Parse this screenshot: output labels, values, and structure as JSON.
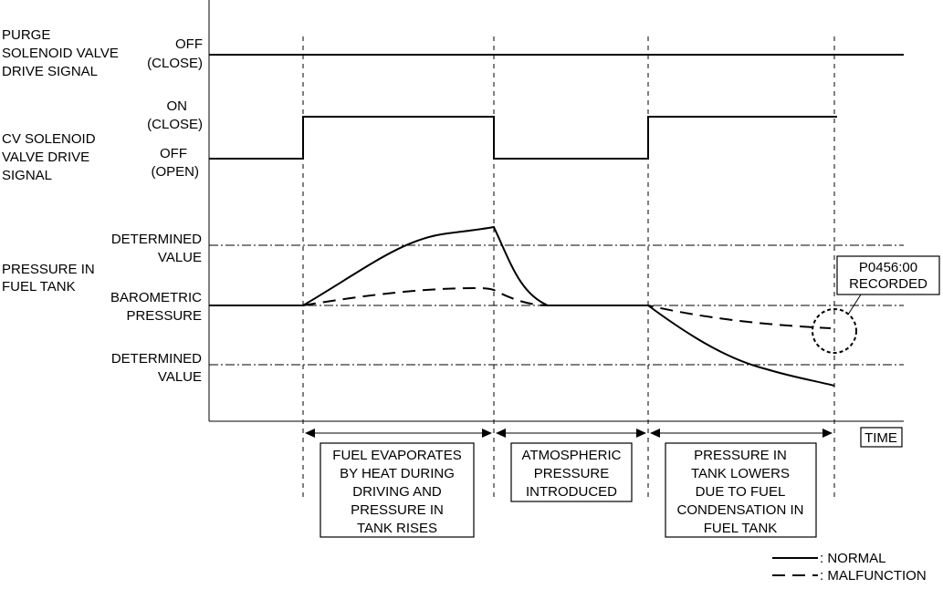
{
  "signals": {
    "purge_label": [
      "PURGE",
      "SOLENOID VALVE",
      "DRIVE SIGNAL"
    ],
    "purge_state": [
      "OFF",
      "(CLOSE)"
    ],
    "cv_label": [
      "CV SOLENOID",
      "VALVE DRIVE",
      "SIGNAL"
    ],
    "cv_on": [
      "ON",
      "(CLOSE)"
    ],
    "cv_off": [
      "OFF",
      "(OPEN)"
    ],
    "pressure_label": [
      "PRESSURE IN",
      "FUEL TANK"
    ],
    "determined_upper": [
      "DETERMINED",
      "VALUE"
    ],
    "barometric": [
      "BAROMETRIC",
      "PRESSURE"
    ],
    "determined_lower": [
      "DETERMINED",
      "VALUE"
    ]
  },
  "axis": {
    "time_label": "TIME"
  },
  "dtc": {
    "code": "P0456:00",
    "status": "RECORDED"
  },
  "phases": [
    {
      "lines": [
        "FUEL EVAPORATES",
        "BY HEAT DURING",
        "DRIVING AND",
        "PRESSURE IN",
        "TANK RISES"
      ]
    },
    {
      "lines": [
        "ATMOSPHERIC",
        "PRESSURE",
        "INTRODUCED"
      ]
    },
    {
      "lines": [
        "PRESSURE IN",
        "TANK LOWERS",
        "DUE TO FUEL",
        "CONDENSATION IN",
        "FUEL TANK"
      ]
    }
  ],
  "legend": {
    "normal": ": NORMAL",
    "malfunction": ": MALFUNCTION"
  }
}
